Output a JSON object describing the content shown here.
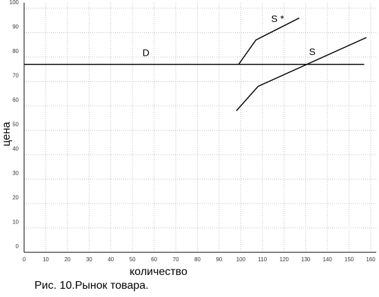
{
  "chart_data": {
    "type": "line",
    "title": "Рис. 10.Рынок товара.",
    "x_label": "количество",
    "y_label": "цена",
    "xlim": [
      0,
      160
    ],
    "xticks": [
      0,
      10,
      20,
      30,
      40,
      50,
      60,
      70,
      80,
      90,
      100,
      110,
      120,
      130,
      140,
      150,
      160
    ],
    "ylim": [
      0,
      100
    ],
    "yticks": [
      0,
      10,
      20,
      30,
      40,
      50,
      60,
      70,
      80,
      90,
      100
    ],
    "grid": true,
    "series": [
      {
        "name": "D",
        "color": "#000000",
        "x": [
          0,
          157
        ],
        "values": [
          77,
          77
        ]
      },
      {
        "name": "S *",
        "color": "#000000",
        "x": [
          99,
          107,
          127
        ],
        "values": [
          77,
          87,
          96
        ]
      },
      {
        "name": "S",
        "color": "#000000",
        "x": [
          98,
          108,
          158
        ],
        "values": [
          58,
          68,
          88
        ]
      }
    ]
  }
}
